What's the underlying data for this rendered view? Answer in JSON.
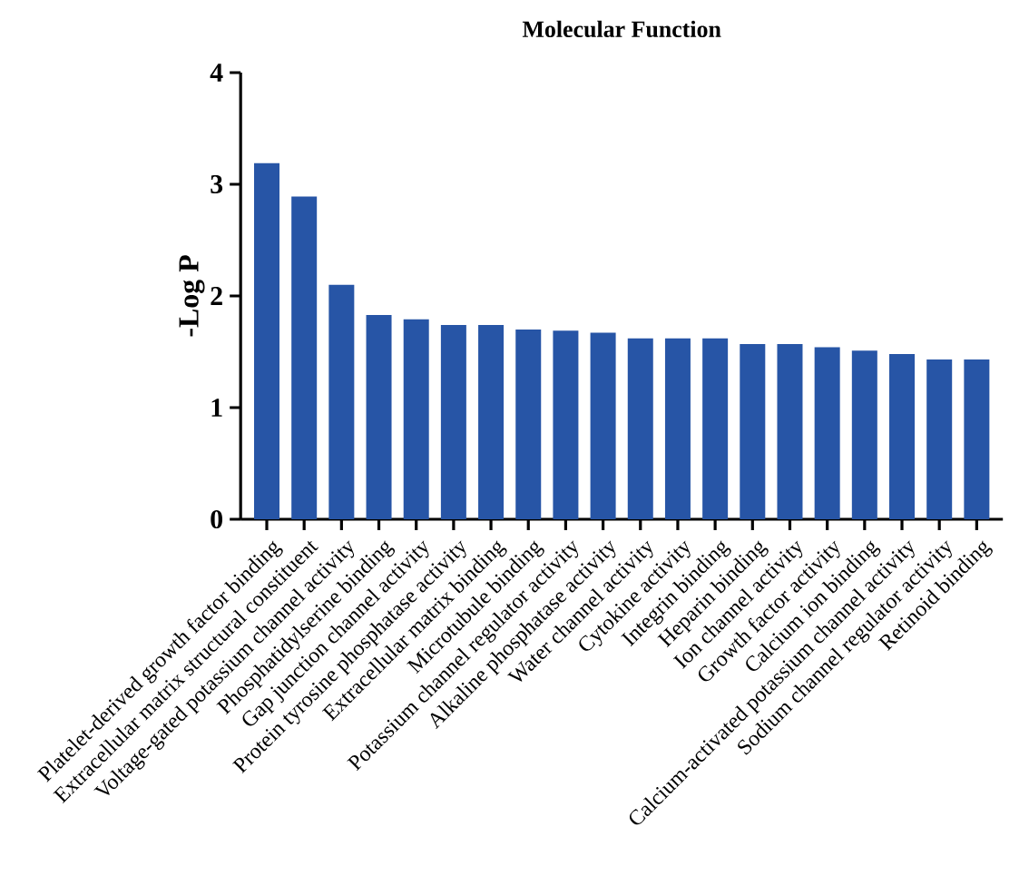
{
  "chart_data": {
    "type": "bar",
    "title": "Molecular Function",
    "ylabel": "-Log P",
    "categories": [
      "Platelet-derived growth factor binding",
      "Extracellular matrix structural constituent",
      "Voltage-gated potassium channel activity",
      "Phosphatidylserine binding",
      "Gap junction channel activity",
      "Protein tyrosine phosphatase activity",
      "Extracellular matrix binding",
      "Microtubule binding",
      "Potassium channel regulator activity",
      "Alkaline phosphatase activity",
      "Water channel activity",
      "Cytokine activity",
      "Integrin binding",
      "Heparin binding",
      "Ion channel activity",
      "Growth factor activity",
      "Calcium ion binding",
      "Calcium-activated potassium channel activity",
      "Sodium channel regulator activity",
      "Retinoid binding"
    ],
    "values": [
      3.19,
      2.89,
      2.1,
      1.83,
      1.79,
      1.74,
      1.74,
      1.7,
      1.69,
      1.67,
      1.62,
      1.62,
      1.62,
      1.57,
      1.57,
      1.54,
      1.51,
      1.48,
      1.43,
      1.43
    ],
    "color": "#2755a6",
    "ylim": [
      0,
      4
    ],
    "yticks": [
      0,
      1,
      2,
      3,
      4
    ]
  }
}
